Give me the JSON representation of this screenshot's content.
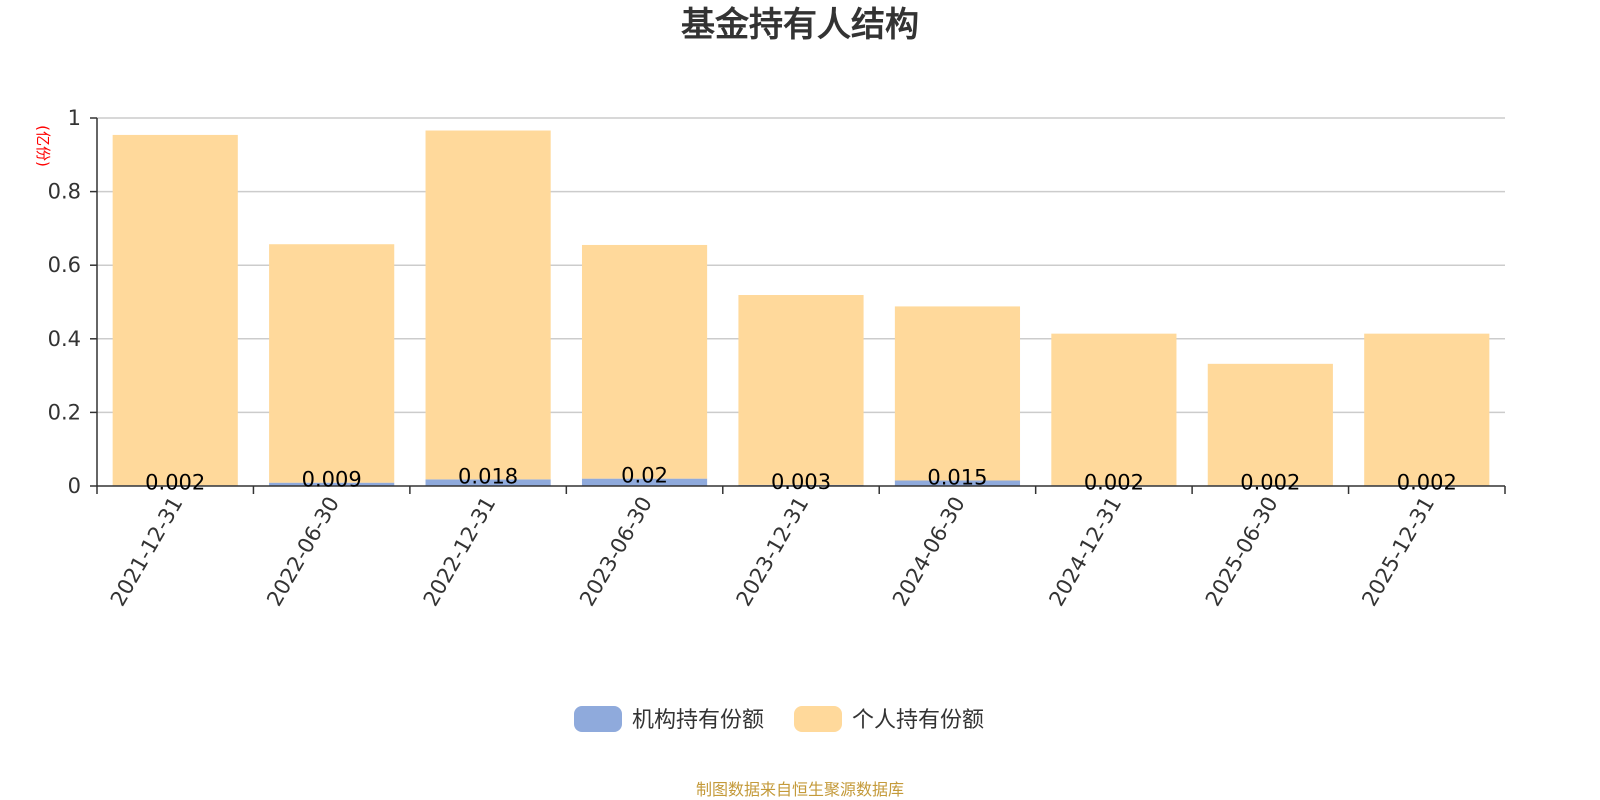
{
  "chart_data": {
    "type": "bar",
    "stacked": true,
    "title": "基金持有人结构",
    "y_unit": "(亿份)",
    "ylim": [
      0,
      1
    ],
    "yticks": [
      "0",
      "0.2",
      "0.4",
      "0.6",
      "0.8",
      "1"
    ],
    "grid": true,
    "legend_position": "bottom-center",
    "categories": [
      "2021-12-31",
      "2022-06-30",
      "2022-12-31",
      "2023-06-30",
      "2023-12-31",
      "2024-06-30",
      "2024-12-31",
      "2025-06-30",
      "2025-12-31"
    ],
    "series": [
      {
        "name": "机构持有份额",
        "color": "#8faadc",
        "values": [
          0.002,
          0.009,
          0.018,
          0.02,
          0.003,
          0.015,
          0.002,
          0.002,
          0.002
        ],
        "labels": [
          "0.002",
          "0.009",
          "0.018",
          "0.02",
          "0.003",
          "0.015",
          "0.002",
          "0.002",
          "0.002"
        ]
      },
      {
        "name": "个人持有份额",
        "color": "#ffd99b",
        "values": [
          0.952,
          0.648,
          0.948,
          0.635,
          0.516,
          0.473,
          0.412,
          0.33,
          0.412
        ]
      }
    ],
    "source": "制图数据来自恒生聚源数据库"
  }
}
